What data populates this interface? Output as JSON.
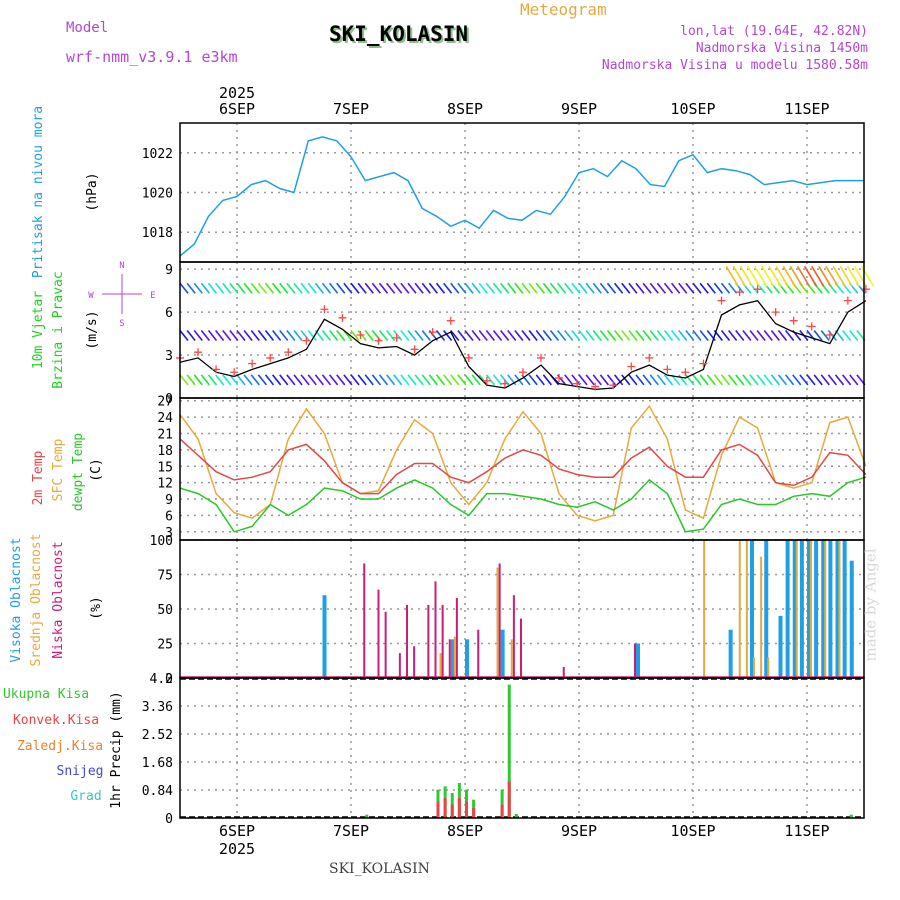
{
  "header": {
    "title": "SKI_KOLASIN",
    "subtitle": "Meteogram",
    "model_label": "Model",
    "model_name": "wrf-nmm_v3.9.1 e3km",
    "lonlat": "lon,lat (19.64E, 42.82N)",
    "elevation": "Nadmorska Visina 1450m",
    "elevation_model": "Nadmorska Visina u modelu 1580.58m",
    "footer_title": "SKI_KOLASIN",
    "watermark": "made by Angel"
  },
  "colors": {
    "pressure": "#1ea0e6",
    "wind_label": "#1ed21e",
    "temp2m": "#e64646",
    "sfc": "#e6aa3c",
    "dewpt": "#28c828",
    "high_cloud": "#1ea0e6",
    "mid_cloud": "#e6aa3c",
    "low_cloud": "#c81e78",
    "total_precip": "#32c832",
    "convective": "#e64646",
    "frozen": "#e68232",
    "snow": "#4646dc",
    "graupel": "#32c8c8",
    "compass": "#b446d2",
    "gust": "#ff4646",
    "speed": "#000000"
  },
  "time_axis": {
    "top_labels": [
      "6SEP",
      "7SEP",
      "8SEP",
      "9SEP",
      "10SEP",
      "11SEP"
    ],
    "bottom_labels": [
      "6SEP",
      "7SEP",
      "8SEP",
      "9SEP",
      "10SEP",
      "11SEP"
    ],
    "year": "2025"
  },
  "compass": {
    "north": "N",
    "west": "W",
    "east": "E",
    "south": "S"
  },
  "chart_data": [
    {
      "type": "line",
      "name": "Sea level pressure",
      "side_label": "Pritisak na nivou mora",
      "ylabel": "(hPa)",
      "ylim": [
        1016.5,
        1023.5
      ],
      "yticks": [
        "1018",
        "1020",
        "1022"
      ],
      "x_hours": "0-144 (every 3h from 6SEP 00UTC)",
      "series": [
        {
          "name": "pressure",
          "values": [
            1016.8,
            1017.4,
            1018.8,
            1019.6,
            1019.8,
            1020.4,
            1020.6,
            1020.2,
            1020.0,
            1022.6,
            1022.8,
            1022.6,
            1021.8,
            1020.6,
            1020.8,
            1021.0,
            1020.6,
            1019.2,
            1018.8,
            1018.3,
            1018.6,
            1018.2,
            1019.1,
            1018.7,
            1018.6,
            1019.1,
            1018.9,
            1019.8,
            1021.0,
            1021.2,
            1020.8,
            1021.6,
            1021.2,
            1020.4,
            1020.3,
            1021.6,
            1021.9,
            1021.0,
            1021.2,
            1021.1,
            1020.9,
            1020.4,
            1020.5,
            1020.6,
            1020.4,
            1020.5,
            1020.6,
            1020.6,
            1020.6
          ]
        }
      ]
    },
    {
      "type": "line",
      "name": "10m wind",
      "side_label_1": "10m Vjetar",
      "side_label_2": "Brzina i Pravac",
      "ylabel": "(m/s)",
      "ylim": [
        0,
        9.5
      ],
      "yticks": [
        "0",
        "3",
        "6",
        "9"
      ],
      "series": [
        {
          "name": "speed",
          "values": [
            2.5,
            2.8,
            1.8,
            1.5,
            2.0,
            2.4,
            2.8,
            3.4,
            5.5,
            4.8,
            3.8,
            3.5,
            3.6,
            3.0,
            4.0,
            4.6,
            2.2,
            0.9,
            0.7,
            1.4,
            2.3,
            1.0,
            0.8,
            0.6,
            0.7,
            1.8,
            2.3,
            1.6,
            1.4,
            2.0,
            5.8,
            6.5,
            6.8,
            5.2,
            4.6,
            4.2,
            3.8,
            6.0,
            6.8
          ]
        },
        {
          "name": "gust",
          "values": [
            2.8,
            3.2,
            2.0,
            1.8,
            2.4,
            2.8,
            3.2,
            4.0,
            6.2,
            5.6,
            4.4,
            4.0,
            4.2,
            3.4,
            4.6,
            5.4,
            2.8,
            1.2,
            1.0,
            1.8,
            2.8,
            1.4,
            1.0,
            0.8,
            0.9,
            2.2,
            2.8,
            2.0,
            1.8,
            2.4,
            6.8,
            7.4,
            7.6,
            6.0,
            5.4,
            5.0,
            4.4,
            6.8,
            7.6
          ]
        }
      ]
    },
    {
      "type": "line",
      "name": "Temperature",
      "side_label_1": "2m Temp",
      "side_label_2": "SFC Temp",
      "side_label_3": "dewpt Temp",
      "ylabel": "(C)",
      "ylim": [
        1.5,
        27.5
      ],
      "yticks": [
        "3",
        "6",
        "9",
        "12",
        "15",
        "18",
        "21",
        "24",
        "27"
      ],
      "series": [
        {
          "name": "2m Temp",
          "values": [
            20.0,
            17.0,
            14.0,
            12.5,
            13.0,
            14.0,
            18.0,
            19.0,
            16.0,
            12.0,
            10.0,
            10.0,
            13.5,
            15.5,
            15.5,
            13.0,
            12.0,
            14.0,
            16.5,
            18.0,
            17.0,
            14.5,
            13.5,
            13.0,
            13.0,
            16.5,
            18.5,
            15.0,
            13.0,
            13.0,
            18.0,
            19.0,
            17.0,
            12.0,
            11.5,
            13.0,
            17.5,
            17.0,
            13.5
          ]
        },
        {
          "name": "SFC Temp",
          "values": [
            24.5,
            20.0,
            10.0,
            6.5,
            5.5,
            8.0,
            20.0,
            25.5,
            21.0,
            12.0,
            10.0,
            10.5,
            18.0,
            23.5,
            21.0,
            12.0,
            8.0,
            12.0,
            20.0,
            25.0,
            21.0,
            10.0,
            6.0,
            5.0,
            6.0,
            22.0,
            26.0,
            20.0,
            7.0,
            5.5,
            17.0,
            24.0,
            22.0,
            12.0,
            11.0,
            12.0,
            23.0,
            24.0,
            15.0
          ]
        },
        {
          "name": "dewpt Temp",
          "values": [
            11.0,
            10.0,
            8.0,
            3.0,
            4.0,
            8.0,
            6.0,
            8.0,
            11.0,
            10.5,
            9.0,
            9.0,
            11.0,
            12.5,
            11.0,
            8.0,
            6.0,
            10.0,
            10.0,
            9.5,
            9.0,
            8.0,
            7.5,
            8.5,
            7.0,
            9.0,
            12.5,
            10.0,
            3.0,
            3.5,
            8.0,
            9.0,
            8.0,
            8.0,
            9.5,
            10.0,
            9.5,
            12.0,
            13.0
          ]
        }
      ]
    },
    {
      "type": "bar",
      "name": "Cloud cover",
      "side_label_1": "Visoka Oblacnost",
      "side_label_2": "Srednja Oblacnost",
      "side_label_3": "Niska Oblacnost",
      "ylabel": "(%)",
      "ylim": [
        0,
        100
      ],
      "yticks": [
        "0",
        "25",
        "50",
        "75",
        "100"
      ],
      "series": [
        {
          "name": "high",
          "bars": [
            [
              20,
              60
            ],
            [
              38,
              28
            ],
            [
              40,
              28
            ],
            [
              45,
              35
            ],
            [
              64,
              25
            ],
            [
              77,
              35
            ],
            [
              80,
              100
            ],
            [
              82,
              100
            ],
            [
              84,
              45
            ],
            [
              85,
              100
            ],
            [
              86,
              100
            ],
            [
              87,
              100
            ],
            [
              88,
              100
            ],
            [
              89,
              100
            ],
            [
              90,
              100
            ],
            [
              91,
              100
            ],
            [
              92,
              100
            ],
            [
              93,
              100
            ],
            [
              94,
              85
            ]
          ]
        },
        {
          "name": "mid",
          "bars": [
            [
              36,
              18
            ],
            [
              38,
              30
            ],
            [
              44,
              80
            ],
            [
              46,
              28
            ],
            [
              73,
              100
            ],
            [
              78,
              100
            ],
            [
              79,
              100
            ],
            [
              80,
              15
            ],
            [
              81,
              88
            ],
            [
              82,
              15
            ],
            [
              86,
              100
            ],
            [
              88,
              100
            ],
            [
              90,
              100
            ],
            [
              92,
              100
            ]
          ]
        },
        {
          "name": "low",
          "bars": [
            [
              26,
              83
            ],
            [
              28,
              64
            ],
            [
              29,
              48
            ],
            [
              31,
              18
            ],
            [
              32,
              53
            ],
            [
              33,
              23
            ],
            [
              35,
              53
            ],
            [
              36,
              70
            ],
            [
              37,
              53
            ],
            [
              38,
              28
            ],
            [
              39,
              58
            ],
            [
              42,
              35
            ],
            [
              45,
              83
            ],
            [
              47,
              60
            ],
            [
              48,
              43
            ],
            [
              54,
              8
            ],
            [
              64,
              25
            ]
          ]
        }
      ]
    },
    {
      "type": "bar",
      "name": "Precipitation",
      "side_label_1": "Ukupna Kisa",
      "side_label_2": "Konvek.Kisa",
      "side_label_3": "Zaledj.Kisa",
      "side_label_4": "Snijeg",
      "side_label_5": "Grad",
      "ylabel": "1hr Precip (mm)",
      "ylim": [
        0,
        4.2
      ],
      "yticks": [
        "0",
        "0.84",
        "1.68",
        "2.52",
        "3.36",
        "4.2"
      ],
      "series": [
        {
          "name": "total",
          "bars": [
            [
              26,
              0.1
            ],
            [
              36,
              0.85
            ],
            [
              37,
              0.95
            ],
            [
              38,
              0.75
            ],
            [
              39,
              1.05
            ],
            [
              40,
              0.85
            ],
            [
              41,
              0.55
            ],
            [
              45,
              0.85
            ],
            [
              46,
              4.0
            ],
            [
              47,
              0.12
            ],
            [
              94,
              0.1
            ]
          ]
        },
        {
          "name": "convective",
          "bars": [
            [
              36,
              0.5
            ],
            [
              37,
              0.6
            ],
            [
              38,
              0.4
            ],
            [
              39,
              0.6
            ],
            [
              40,
              0.5
            ],
            [
              41,
              0.3
            ],
            [
              45,
              0.4
            ],
            [
              46,
              1.1
            ]
          ]
        }
      ]
    }
  ]
}
